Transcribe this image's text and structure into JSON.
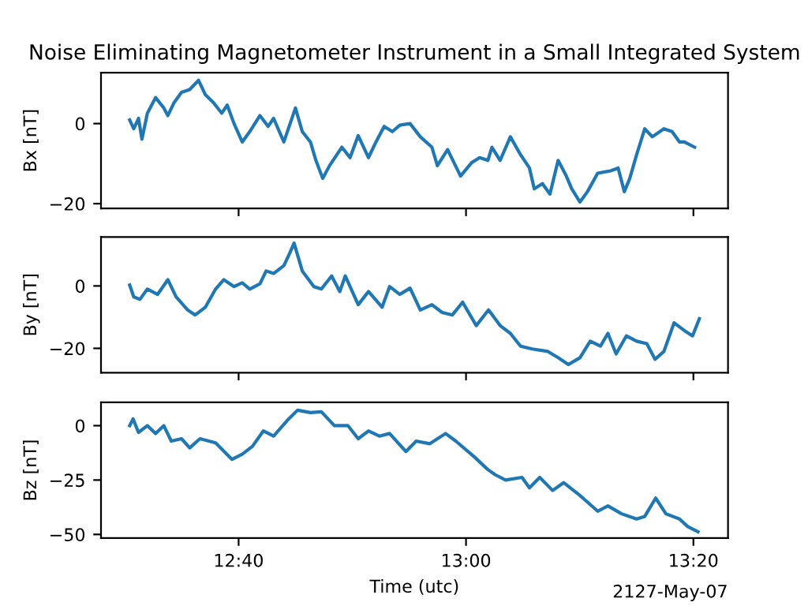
{
  "chart_data": [
    {
      "type": "line",
      "title": "Noise Eliminating Magnetometer Instrument in a Small Integrated System",
      "ylabel": "Bx [nT]",
      "tick_labels": "y",
      "xlim": [
        12.465,
        13.384
      ],
      "xticks": [
        {
          "value": 12.6667,
          "label": null
        },
        {
          "value": 13,
          "label": null
        },
        {
          "value": 13.3333,
          "label": null
        }
      ],
      "ylim": [
        -21.2,
        12.7
      ],
      "yticks": [
        -20,
        0
      ],
      "series": [
        {
          "color": "#1f77b4",
          "x": [
            12.507,
            12.513,
            12.52,
            12.525,
            12.533,
            12.545,
            12.557,
            12.563,
            12.572,
            12.583,
            12.595,
            12.608,
            12.618,
            12.63,
            12.642,
            12.65,
            12.66,
            12.672,
            12.683,
            12.698,
            12.71,
            12.718,
            12.733,
            12.75,
            12.76,
            12.772,
            12.78,
            12.79,
            12.8,
            12.818,
            12.83,
            12.842,
            12.857,
            12.868,
            12.88,
            12.892,
            12.903,
            12.918,
            12.933,
            12.95,
            12.958,
            12.973,
            12.992,
            13.008,
            13.02,
            13.032,
            13.038,
            13.05,
            13.065,
            13.08,
            13.093,
            13.1,
            13.112,
            13.123,
            13.135,
            13.147,
            13.155,
            13.167,
            13.178,
            13.193,
            13.212,
            13.223,
            13.232,
            13.24,
            13.25,
            13.262,
            13.273,
            13.29,
            13.302,
            13.313,
            13.32,
            13.335
          ],
          "values": [
            0.9,
            -1.3,
            1.3,
            -3.9,
            2.6,
            6.5,
            3.9,
            2.0,
            5.2,
            7.8,
            8.5,
            10.8,
            7.2,
            5.2,
            2.6,
            4.6,
            0,
            -4.6,
            -2.0,
            2.0,
            -0.7,
            1.3,
            -4.6,
            3.9,
            -2.0,
            -4.6,
            -9.2,
            -13.7,
            -10.5,
            -5.9,
            -8.5,
            -3.0,
            -8.5,
            -4.6,
            -0.7,
            -2.0,
            -0.4,
            0,
            -3.3,
            -5.9,
            -10.5,
            -6.5,
            -13.1,
            -9.8,
            -8.5,
            -9.2,
            -5.9,
            -9.2,
            -3.3,
            -7.8,
            -11.1,
            -16.3,
            -15.0,
            -17.6,
            -9.2,
            -13.1,
            -16.3,
            -19.6,
            -17.0,
            -12.4,
            -11.8,
            -11.1,
            -17.0,
            -13.7,
            -7.8,
            -1.3,
            -3.3,
            -1.3,
            -2.0,
            -4.6,
            -4.6,
            -5.9
          ]
        }
      ]
    },
    {
      "type": "line",
      "ylabel": "By [nT]",
      "tick_labels": "y",
      "xlim": [
        12.465,
        13.384
      ],
      "xticks": [
        {
          "value": 12.6667,
          "label": null
        },
        {
          "value": 13,
          "label": null
        },
        {
          "value": 13.3333,
          "label": null
        }
      ],
      "ylim": [
        -27.8,
        15.7
      ],
      "yticks": [
        -20,
        0
      ],
      "series": [
        {
          "color": "#1f77b4",
          "x": [
            12.507,
            12.513,
            12.522,
            12.533,
            12.548,
            12.563,
            12.575,
            12.592,
            12.603,
            12.618,
            12.633,
            12.645,
            12.66,
            12.672,
            12.683,
            12.698,
            12.707,
            12.718,
            12.733,
            12.742,
            12.748,
            12.76,
            12.777,
            12.788,
            12.803,
            12.815,
            12.823,
            12.842,
            12.857,
            12.877,
            12.888,
            12.903,
            12.918,
            12.933,
            12.95,
            12.965,
            12.98,
            12.995,
            13.015,
            13.033,
            13.05,
            13.065,
            13.08,
            13.097,
            13.12,
            13.135,
            13.15,
            13.167,
            13.182,
            13.197,
            13.208,
            13.22,
            13.235,
            13.25,
            13.265,
            13.277,
            13.29,
            13.305,
            13.32,
            13.332,
            13.342
          ],
          "values": [
            0.3,
            -3.5,
            -4.3,
            -1,
            -2.7,
            2,
            -3.5,
            -7.7,
            -9.3,
            -6.8,
            -1,
            2,
            -0.2,
            1,
            -1,
            0.7,
            4.8,
            4,
            6.5,
            10.7,
            13.7,
            4.8,
            -0.2,
            -1,
            3.2,
            -1.8,
            3.2,
            -6,
            -1.8,
            -6.8,
            -0.2,
            -2.7,
            -0.7,
            -7.7,
            -6,
            -8.5,
            -9.3,
            -5.2,
            -12.7,
            -7.7,
            -12.7,
            -15.2,
            -19.3,
            -20.2,
            -21,
            -23,
            -25.2,
            -23,
            -17.7,
            -19.3,
            -15.2,
            -21.8,
            -16,
            -17.7,
            -18.5,
            -23.5,
            -21,
            -11.8,
            -14.3,
            -16,
            -10.5
          ]
        }
      ]
    },
    {
      "type": "line",
      "ylabel": "Bz [nT]",
      "xlabel": "Time (utc)",
      "annotations": [
        "2127-May-07"
      ],
      "xlim": [
        12.465,
        13.384
      ],
      "xticks": [
        {
          "value": 12.6667,
          "label": "12:40"
        },
        {
          "value": 13,
          "label": "13:00"
        },
        {
          "value": 13.3333,
          "label": "13:20"
        }
      ],
      "ylim": [
        -51.7,
        10.7
      ],
      "yticks": [
        -50,
        -25,
        0
      ],
      "series": [
        {
          "color": "#1f77b4",
          "x": [
            12.507,
            12.512,
            12.52,
            12.533,
            12.545,
            12.557,
            12.568,
            12.583,
            12.595,
            12.61,
            12.633,
            12.657,
            12.672,
            12.687,
            12.703,
            12.718,
            12.738,
            12.753,
            12.772,
            12.788,
            12.807,
            12.827,
            12.842,
            12.857,
            12.873,
            12.888,
            12.912,
            12.927,
            12.947,
            12.97,
            12.985,
            13.012,
            13.032,
            13.043,
            13.058,
            13.082,
            13.093,
            13.108,
            13.127,
            13.143,
            13.167,
            13.193,
            13.208,
            13.228,
            13.25,
            13.262,
            13.278,
            13.293,
            13.313,
            13.325,
            13.34
          ],
          "values": [
            0,
            3.1,
            -3.1,
            0,
            -3.6,
            0,
            -7.1,
            -6,
            -10.2,
            -6,
            -7.9,
            -15.5,
            -13.1,
            -9.5,
            -2.4,
            -4.8,
            2.4,
            7.1,
            6,
            6.4,
            0,
            0,
            -6,
            -2.4,
            -4.8,
            -3.6,
            -11.9,
            -7.1,
            -8.3,
            -3.6,
            -7.1,
            -14.3,
            -20.2,
            -22.6,
            -25,
            -23.8,
            -28.6,
            -23.8,
            -29.8,
            -26.2,
            -32.1,
            -39.3,
            -36.9,
            -40.5,
            -42.9,
            -41.7,
            -33.3,
            -40.5,
            -42.9,
            -46.4,
            -48.8
          ]
        }
      ]
    }
  ]
}
